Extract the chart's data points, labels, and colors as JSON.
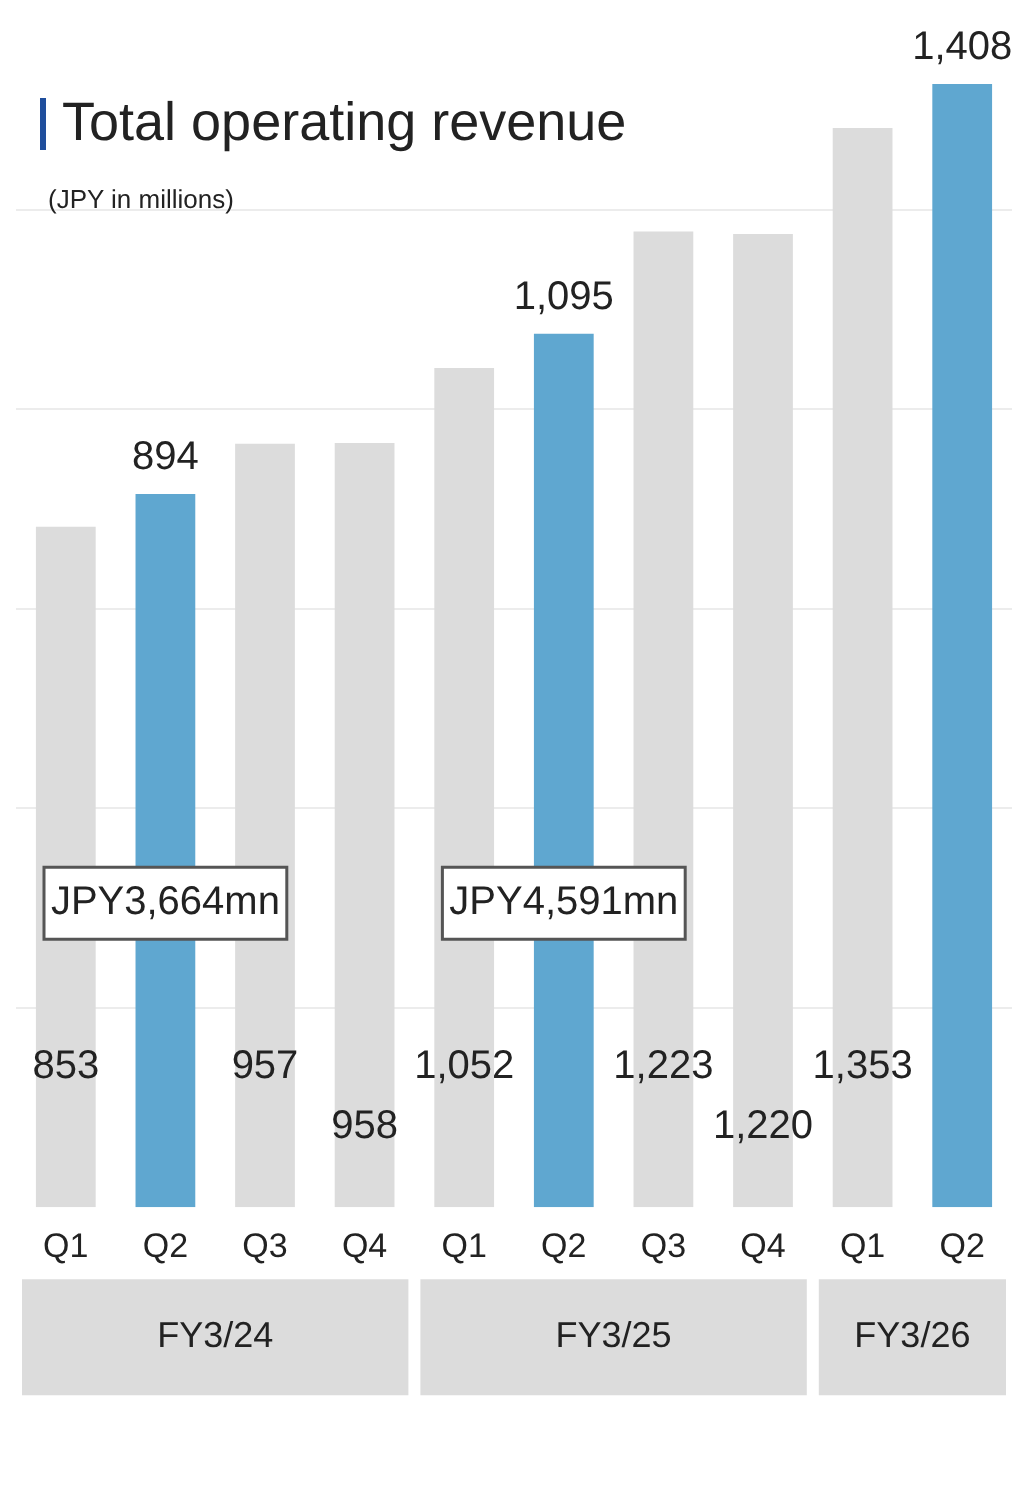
{
  "chart_data": {
    "type": "bar",
    "title": "Total operating revenue",
    "subtitle": "(JPY in millions)",
    "categories": [
      "Q1",
      "Q2",
      "Q3",
      "Q4",
      "Q1",
      "Q2",
      "Q3",
      "Q4",
      "Q1",
      "Q2"
    ],
    "values": [
      853,
      894,
      957,
      958,
      1052,
      1095,
      1223,
      1220,
      1353,
      1408
    ],
    "value_labels": [
      "853",
      "894",
      "957",
      "958",
      "1,052",
      "1,095",
      "1,223",
      "1,220",
      "1,353",
      "1,408"
    ],
    "colors": [
      "#dcdcdc",
      "#5fa7d0",
      "#dcdcdc",
      "#dcdcdc",
      "#dcdcdc",
      "#5fa7d0",
      "#dcdcdc",
      "#dcdcdc",
      "#dcdcdc",
      "#5fa7d0"
    ],
    "yticks": [
      {
        "value": 250,
        "label": null
      },
      {
        "value": 500,
        "label": null
      },
      {
        "value": 750,
        "label": null
      },
      {
        "value": 1000,
        "label": null
      },
      {
        "value": 1250,
        "label": null
      }
    ],
    "tick_labels": "x",
    "grid": "y",
    "legend": false,
    "annotations": [
      "JPY3,664mn",
      "JPY4,591mn",
      "FY3/24",
      "FY3/25",
      "FY3/26"
    ]
  }
}
